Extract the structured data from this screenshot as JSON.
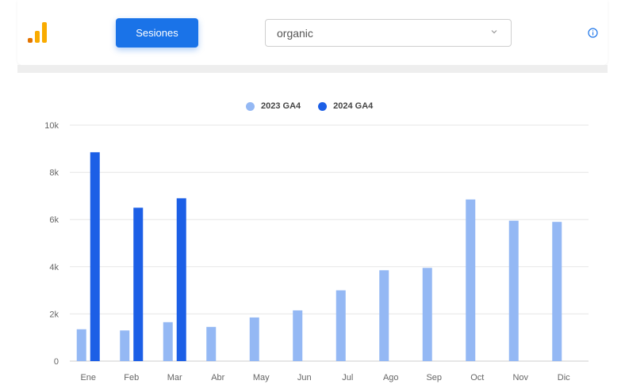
{
  "toolbar": {
    "button_label": "Sesiones",
    "select_value": "organic",
    "logo_icon": "analytics-logo-icon",
    "info_icon": "info-icon",
    "accent_color": "#1a73e8",
    "logo_color": "#f9ab00"
  },
  "chart_data": {
    "type": "bar",
    "categories": [
      "Ene",
      "Feb",
      "Mar",
      "Abr",
      "May",
      "Jun",
      "Jul",
      "Ago",
      "Sep",
      "Oct",
      "Nov",
      "Dic"
    ],
    "series": [
      {
        "name": "2023 GA4",
        "color": "#94b8f4",
        "values": [
          1350,
          1300,
          1650,
          1450,
          1850,
          2150,
          3000,
          3850,
          3950,
          6850,
          5950,
          5900
        ]
      },
      {
        "name": "2024 GA4",
        "color": "#1c5fe6",
        "values": [
          8850,
          6500,
          6900,
          null,
          null,
          null,
          null,
          null,
          null,
          null,
          null,
          null
        ]
      }
    ],
    "y_ticks": [
      "0",
      "2k",
      "4k",
      "6k",
      "8k",
      "10k"
    ],
    "ylim": [
      0,
      10000
    ],
    "grid": true,
    "legend_position": "top-center"
  }
}
